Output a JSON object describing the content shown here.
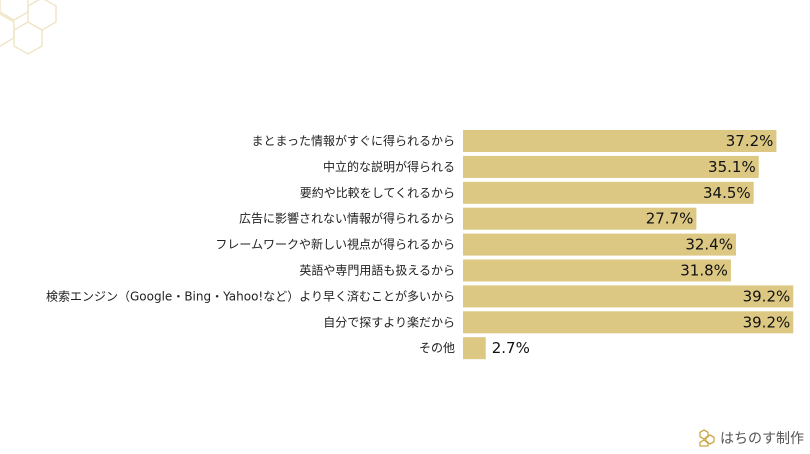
{
  "chart_data": {
    "type": "bar",
    "orientation": "horizontal",
    "categories": [
      "まとまった情報がすぐに得られるから",
      "中立的な説明が得られる",
      "要約や比較をしてくれるから",
      "広告に影響されない情報が得られるから",
      "フレームワークや新しい視点が得られるから",
      "英語や専門用語も扱えるから",
      "検索エンジン（Google・Bing・Yahoo!など）より早く済むことが多いから",
      "自分で探すより楽だから",
      "その他"
    ],
    "values": [
      37.2,
      35.1,
      34.5,
      27.7,
      32.4,
      31.8,
      39.2,
      39.2,
      2.7
    ],
    "value_labels": [
      "37.2%",
      "35.1%",
      "34.5%",
      "27.7%",
      "32.4%",
      "31.8%",
      "39.2%",
      "39.2%",
      "2.7%"
    ],
    "xlim": [
      0,
      40
    ],
    "bar_color": "#dcc882",
    "grid": false,
    "legend": "none"
  },
  "brand": {
    "text": "はちのす制作",
    "logo": "hexagon-logo-icon"
  },
  "colors": {
    "deco_hex": "#efe6c8"
  }
}
